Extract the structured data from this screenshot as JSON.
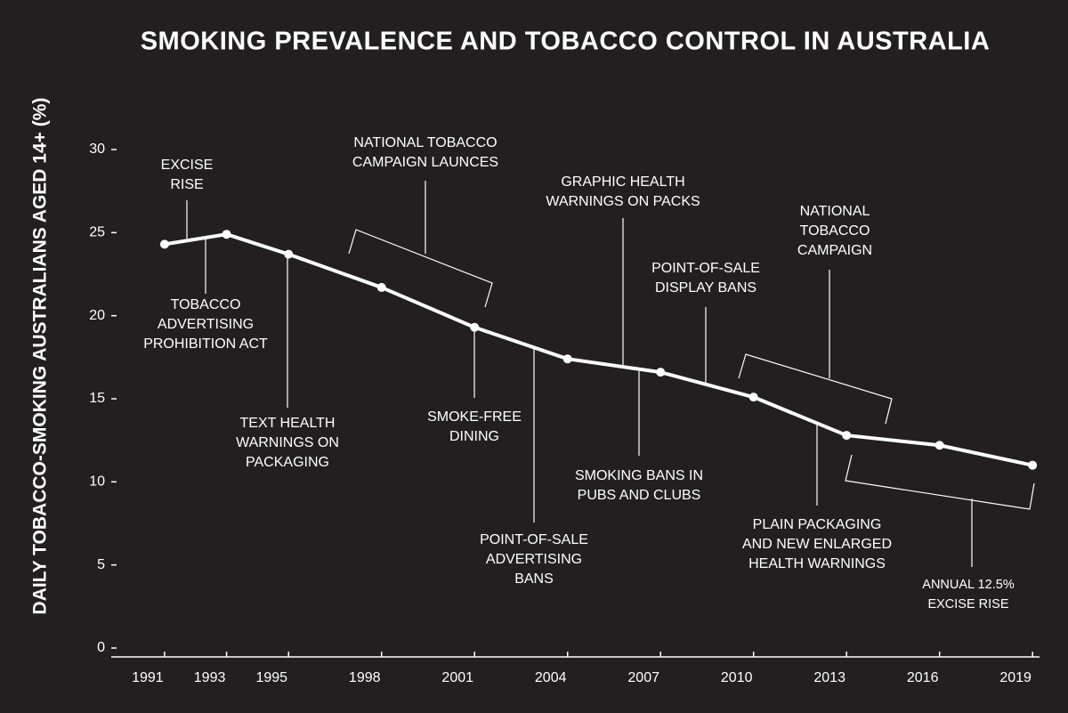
{
  "chart_data": {
    "type": "line",
    "title": "SMOKING PREVALENCE AND TOBACCO CONTROL IN AUSTRALIA",
    "y_label": "DAILY TOBACCO-SMOKING AUSTRALIANS AGED 14+ (%)",
    "x": [
      1991,
      1993,
      1995,
      1998,
      2001,
      2004,
      2007,
      2010,
      2013,
      2016,
      2019
    ],
    "series": [
      {
        "color": "#ffffff",
        "values": [
          24.3,
          24.9,
          23.7,
          21.7,
          19.3,
          17.4,
          16.6,
          15.1,
          12.8,
          12.2,
          11.0
        ]
      }
    ],
    "xlim": [
      1990.5,
      2020
    ],
    "xticks": [
      1991,
      1993,
      1995,
      1998,
      2001,
      2004,
      2007,
      2010,
      2013,
      2016,
      2019
    ],
    "ylim": [
      0,
      30
    ],
    "yticks": [
      0,
      5,
      10,
      15,
      20,
      25,
      30
    ],
    "annotations": [
      [
        "EXCISE",
        "RISE"
      ],
      [
        "TOBACCO",
        "ADVERTISING",
        "PROHIBITION ACT"
      ],
      [
        "TEXT HEALTH",
        "WARNINGS ON",
        "PACKAGING"
      ],
      [
        "NATIONAL TOBACCO",
        "CAMPAIGN LAUNCES"
      ],
      [
        "SMOKE-FREE",
        "DINING"
      ],
      [
        "GRAPHIC HEALTH",
        "WARNINGS ON PACKS"
      ],
      [
        "POINT-OF-SALE",
        "ADVERTISING",
        "BANS"
      ],
      [
        "POINT-OF-SALE",
        "DISPLAY BANS"
      ],
      [
        "SMOKING BANS IN",
        "PUBS AND CLUBS"
      ],
      [
        "NATIONAL",
        "TOBACCO",
        "CAMPAIGN"
      ],
      [
        "PLAIN PACKAGING",
        "AND NEW ENLARGED",
        "HEALTH WARNINGS"
      ],
      [
        "ANNUAL 12.5%",
        "EXCISE RISE"
      ]
    ]
  }
}
